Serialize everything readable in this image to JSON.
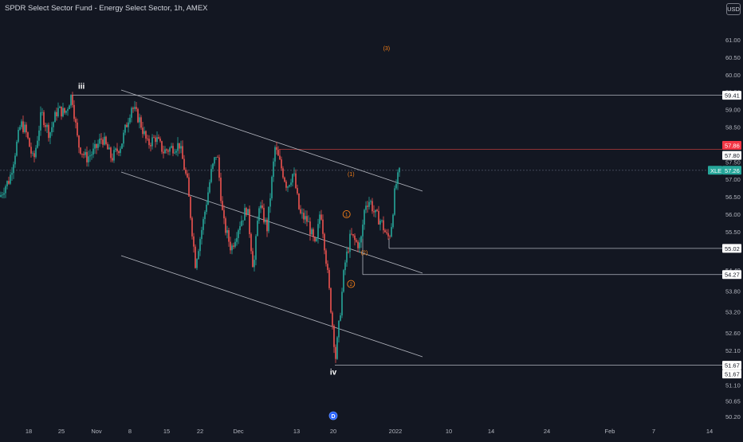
{
  "title": "SPDR Select Sector Fund - Energy Select Sector, 1h, AMEX",
  "currency": "USD",
  "colors": {
    "background": "#131722",
    "up": "#26a69a",
    "down": "#ef5350",
    "line": "#b2b5be",
    "label_orange": "#f57f17",
    "text": "#b2b5be",
    "current_price_bg": "#26a69a"
  },
  "chart_data": {
    "type": "candlestick",
    "symbol": "XLE",
    "y_ticks": [
      50.2,
      50.65,
      51.1,
      52.1,
      52.6,
      53.2,
      53.8,
      54.4,
      55.0,
      55.5,
      56.0,
      56.5,
      57.0,
      57.5,
      58.0,
      58.5,
      59.0,
      59.5,
      60.0,
      60.5,
      61.0
    ],
    "x_ticks": [
      "18",
      "25",
      "Nov",
      "8",
      "15",
      "22",
      "Dec",
      "13",
      "20",
      "2022",
      "10",
      "14",
      "24",
      "Feb",
      "7",
      "14"
    ],
    "price_labels": [
      {
        "text": "59.41",
        "value": 59.41,
        "style": "white"
      },
      {
        "text": "57.86",
        "value": 57.86,
        "style": "red"
      },
      {
        "text": "57.80",
        "value": 57.8,
        "style": "white"
      },
      {
        "text": "57.26",
        "value": 57.26,
        "style": "green"
      },
      {
        "text": "55.02",
        "value": 55.02,
        "style": "white"
      },
      {
        "text": "54.27",
        "value": 54.27,
        "style": "white"
      },
      {
        "text": "51.67",
        "value": 51.67,
        "style": "white"
      },
      {
        "text": "51.67",
        "value": 51.67,
        "style": "white"
      }
    ],
    "current_symbol_tag": "XLE",
    "horizontal_levels": [
      59.41,
      57.86,
      55.02,
      54.27,
      51.67
    ],
    "annotations": [
      {
        "text": "iii",
        "x": "2021-10-29",
        "y": 59.6
      },
      {
        "text": "iv",
        "x": "2021-12-20",
        "y": 51.4
      },
      {
        "text": "(3)",
        "x": "2022-01-01",
        "y": 60.7
      },
      {
        "text": "(1)",
        "x": "2021-12-24",
        "y": 57.1
      },
      {
        "text": "1",
        "x": "2021-12-23",
        "y": 56.0
      },
      {
        "text": "2",
        "x": "2021-12-24",
        "y": 54.0
      },
      {
        "text": "(2)",
        "x": "2021-12-27",
        "y": 54.85
      }
    ],
    "event_marker": "D",
    "grid": false
  }
}
